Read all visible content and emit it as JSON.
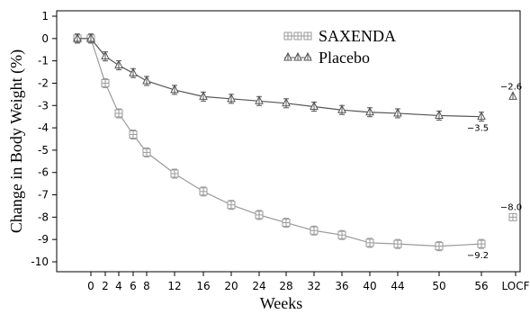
{
  "chart_data": {
    "type": "line",
    "title": "",
    "xlabel": "Weeks",
    "ylabel": "Change in Body Weight (%)",
    "ylim": [
      -10,
      1
    ],
    "yticks": [
      1,
      0,
      -1,
      -2,
      -3,
      -4,
      -5,
      -6,
      -7,
      -8,
      -9,
      -10
    ],
    "xticks": [
      "0",
      "2",
      "4",
      "6",
      "8",
      "12",
      "16",
      "20",
      "24",
      "28",
      "32",
      "36",
      "40",
      "44",
      "50",
      "56",
      "LOCF"
    ],
    "legend_position": "top-center",
    "series": [
      {
        "name": "SAXENDA",
        "marker": "square",
        "color": "#9a9a9a",
        "x": [
          "-2",
          "0",
          "2",
          "4",
          "6",
          "8",
          "12",
          "16",
          "20",
          "24",
          "28",
          "32",
          "36",
          "40",
          "44",
          "50",
          "56"
        ],
        "values": [
          0.0,
          0.0,
          -2.0,
          -3.35,
          -4.3,
          -5.1,
          -6.05,
          -6.85,
          -7.45,
          -7.9,
          -8.25,
          -8.6,
          -8.8,
          -9.15,
          -9.2,
          -9.3,
          -9.2
        ],
        "locf": -8.0,
        "labels": {
          "last": "-9.2",
          "locf": "-8.0"
        }
      },
      {
        "name": "Placebo",
        "marker": "triangle",
        "color": "#555555",
        "x": [
          "-2",
          "0",
          "2",
          "4",
          "6",
          "8",
          "12",
          "16",
          "20",
          "24",
          "28",
          "32",
          "36",
          "40",
          "44",
          "50",
          "56"
        ],
        "values": [
          0.0,
          0.0,
          -0.8,
          -1.2,
          -1.55,
          -1.9,
          -2.3,
          -2.6,
          -2.7,
          -2.8,
          -2.9,
          -3.05,
          -3.2,
          -3.3,
          -3.35,
          -3.45,
          -3.5
        ],
        "locf": -2.6,
        "labels": {
          "last": "-3.5",
          "locf": "-2.6"
        }
      }
    ]
  }
}
